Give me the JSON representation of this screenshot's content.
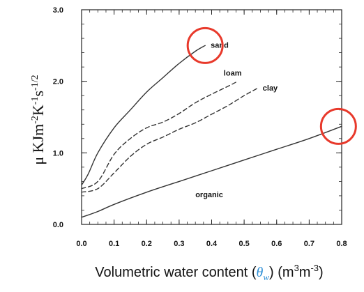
{
  "chart_data": {
    "type": "line",
    "xlabel": {
      "prefix": "Volumetric water content (",
      "symbol": "θ",
      "symbol_sub": "w",
      "suffix": ") (m",
      "unit_exp1": "3",
      "unit_mid": "m",
      "unit_exp2": "-3",
      "unit_close": ")"
    },
    "ylabel": {
      "prefix": "μ KJm",
      "exp1": "-2",
      "k": "K",
      "exp2": "-1",
      "s": "s",
      "exp3": "-1/2"
    },
    "xlim": [
      0.0,
      0.8
    ],
    "ylim": [
      0.0,
      3.0
    ],
    "x_ticks": [
      "0.0",
      "0.1",
      "0.2",
      "0.3",
      "0.4",
      "0.5",
      "0.6",
      "0.7",
      "0.8"
    ],
    "y_ticks": [
      "0.0",
      "1.0",
      "2.0",
      "3.0"
    ],
    "series": [
      {
        "name": "sand",
        "style": "solid",
        "x": [
          0.0,
          0.02,
          0.05,
          0.1,
          0.15,
          0.2,
          0.25,
          0.3,
          0.35,
          0.38
        ],
        "y": [
          0.55,
          0.7,
          1.0,
          1.35,
          1.6,
          1.85,
          2.05,
          2.25,
          2.42,
          2.5
        ]
      },
      {
        "name": "loam",
        "style": "dashed",
        "x": [
          0.0,
          0.05,
          0.1,
          0.15,
          0.2,
          0.25,
          0.3,
          0.35,
          0.4,
          0.45,
          0.48
        ],
        "y": [
          0.5,
          0.6,
          0.98,
          1.2,
          1.35,
          1.43,
          1.55,
          1.7,
          1.82,
          1.93,
          2.0
        ]
      },
      {
        "name": "clay",
        "style": "dashed",
        "x": [
          0.0,
          0.05,
          0.1,
          0.15,
          0.2,
          0.25,
          0.3,
          0.35,
          0.4,
          0.45,
          0.5,
          0.54
        ],
        "y": [
          0.45,
          0.5,
          0.72,
          0.95,
          1.12,
          1.22,
          1.33,
          1.42,
          1.54,
          1.66,
          1.8,
          1.9
        ]
      },
      {
        "name": "organic",
        "style": "solid",
        "x": [
          0.0,
          0.05,
          0.1,
          0.2,
          0.3,
          0.4,
          0.5,
          0.6,
          0.7,
          0.8
        ],
        "y": [
          0.1,
          0.18,
          0.28,
          0.45,
          0.6,
          0.75,
          0.9,
          1.05,
          1.2,
          1.37
        ]
      }
    ],
    "annotations": [
      {
        "name": "highlight-circle-sand",
        "x": 0.38,
        "y": 2.5,
        "color": "#e8392b"
      },
      {
        "name": "highlight-circle-organic",
        "x": 0.79,
        "y": 1.37,
        "color": "#e8392b"
      }
    ],
    "grid": false,
    "colors": {
      "line": "#333333",
      "highlight": "#e8392b",
      "theta": "#2e8fd6"
    }
  }
}
